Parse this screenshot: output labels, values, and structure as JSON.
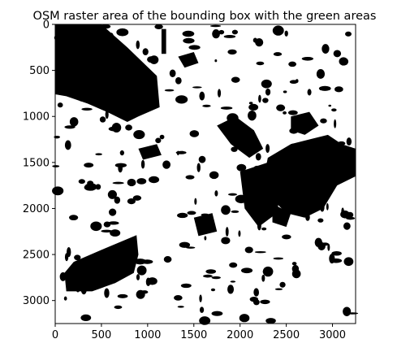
{
  "chart_data": {
    "type": "heatmap",
    "title": "OSM raster area of the bounding box with the green areas",
    "xlabel": "",
    "ylabel": "",
    "xlim": [
      0,
      3250
    ],
    "ylim": [
      3250,
      0
    ],
    "x_ticks": [
      0,
      500,
      1000,
      1500,
      2000,
      2500,
      3000
    ],
    "y_ticks": [
      0,
      500,
      1000,
      1500,
      2000,
      2500,
      3000
    ],
    "colormap": "binary",
    "colors": {
      "green_area": "#000000",
      "background": "#ffffff",
      "frame": "#000000"
    },
    "grid": false
  }
}
